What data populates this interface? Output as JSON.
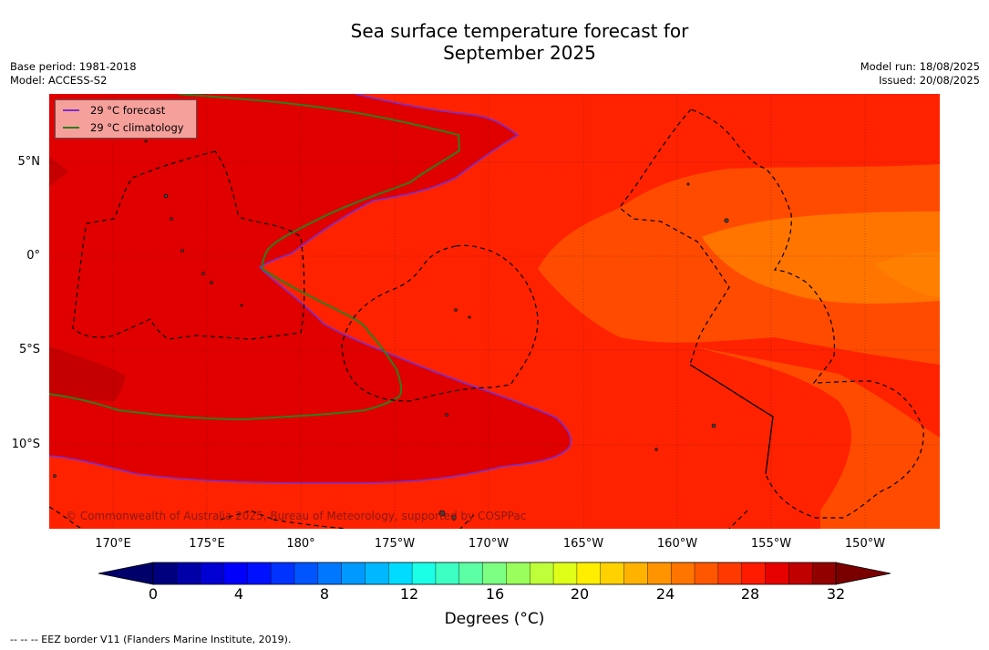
{
  "header": {
    "title_line1": "Sea surface temperature forecast for",
    "title_line2": "September 2025",
    "base_period": "Base period: 1981-2018",
    "model": "Model: ACCESS-S2",
    "model_run": "Model run: 18/08/2025",
    "issued": "Issued: 20/08/2025"
  },
  "legend": {
    "forecast_label": "29 °C  forecast",
    "climatology_label": "29 °C  climatology",
    "forecast_color": "#7a2fd0",
    "climatology_color": "#2e7d1f"
  },
  "axes": {
    "lat_labels": [
      "5°N",
      "0°",
      "5°S",
      "10°S"
    ],
    "lon_labels": [
      "170°E",
      "175°E",
      "180°",
      "175°W",
      "170°W",
      "165°W",
      "160°W",
      "155°W",
      "150°W"
    ]
  },
  "credit": "© Commonwealth of Australia 2025, Bureau of Meteorology, supported by COSPPac",
  "colorbar": {
    "ticks": [
      "0",
      "4",
      "8",
      "12",
      "16",
      "20",
      "24",
      "28",
      "32"
    ],
    "label_prefix": "Degrees (",
    "label_unit": "°C",
    "label_suffix": ")",
    "colors": [
      "#00007f",
      "#0000a8",
      "#0000d2",
      "#0000fb",
      "#0011ff",
      "#0033ff",
      "#0055ff",
      "#0077ff",
      "#0099ff",
      "#00b8ff",
      "#00dcff",
      "#1affe5",
      "#3dffc3",
      "#5cffa3",
      "#7cff82",
      "#9aff5d",
      "#bfff3a",
      "#dfff19",
      "#ffee00",
      "#ffd100",
      "#ffb200",
      "#ff9400",
      "#ff7500",
      "#ff5700",
      "#ff3900",
      "#ff1b00",
      "#e60000",
      "#c00000",
      "#930000"
    ],
    "low_extend_color": "#00006a",
    "high_extend_color": "#7a0000"
  },
  "footer": "--  --  -- EEZ border V11 (Flanders Marine Institute, 2019).",
  "map_colors": {
    "sst_28_29": "#ff2200",
    "sst_29_30": "#e00000",
    "sst_30_31": "#c40000",
    "sst_27_28": "#ff4b00",
    "sst_26_27": "#ff7500"
  }
}
